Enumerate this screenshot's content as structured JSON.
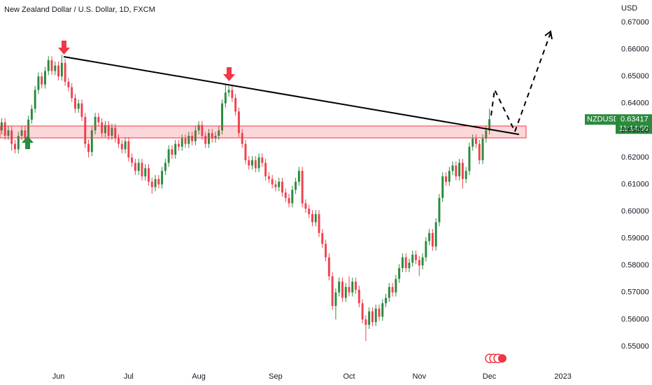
{
  "chart_data": {
    "type": "candlestick",
    "title": "New Zealand Dollar / U.S. Dollar, 1D, FXCM",
    "y_axis_label": "USD",
    "up_color": "#2b8a3e",
    "down_color": "#f0424f",
    "grid": false,
    "ylim": [
      0.5435,
      0.6783
    ],
    "yticks": [
      {
        "value": 0.55,
        "label": "0.55000"
      },
      {
        "value": 0.56,
        "label": "0.56000"
      },
      {
        "value": 0.57,
        "label": "0.57000"
      },
      {
        "value": 0.58,
        "label": "0.58000"
      },
      {
        "value": 0.59,
        "label": "0.59000"
      },
      {
        "value": 0.6,
        "label": "0.60000"
      },
      {
        "value": 0.61,
        "label": "0.61000"
      },
      {
        "value": 0.62,
        "label": "0.62000"
      },
      {
        "value": 0.63,
        "label": "0.63000"
      },
      {
        "value": 0.64,
        "label": "0.64000"
      },
      {
        "value": 0.65,
        "label": "0.65000"
      },
      {
        "value": 0.66,
        "label": "0.66000"
      },
      {
        "value": 0.67,
        "label": "0.67000"
      }
    ],
    "xlim": [
      -0.5,
      177.5
    ],
    "xticks": [
      {
        "value": 17,
        "label": "Jun"
      },
      {
        "value": 38,
        "label": "Jul"
      },
      {
        "value": 59,
        "label": "Aug"
      },
      {
        "value": 82,
        "label": "Sep"
      },
      {
        "value": 104,
        "label": "Oct"
      },
      {
        "value": 125,
        "label": "Nov"
      },
      {
        "value": 146,
        "label": "Dec"
      },
      {
        "value": 168,
        "label": "2023"
      }
    ],
    "open": [
      0.63,
      0.633,
      0.628,
      0.63,
      0.625,
      0.623,
      0.628,
      0.63,
      0.627,
      0.634,
      0.638,
      0.645,
      0.65,
      0.647,
      0.652,
      0.656,
      0.652,
      0.654,
      0.65,
      0.655,
      0.648,
      0.646,
      0.642,
      0.638,
      0.64,
      0.635,
      0.625,
      0.622,
      0.63,
      0.635,
      0.633,
      0.629,
      0.632,
      0.628,
      0.631,
      0.627,
      0.625,
      0.623,
      0.626,
      0.62,
      0.618,
      0.615,
      0.618,
      0.613,
      0.616,
      0.611,
      0.609,
      0.612,
      0.61,
      0.615,
      0.618,
      0.623,
      0.621,
      0.625,
      0.624,
      0.627,
      0.625,
      0.628,
      0.626,
      0.63,
      0.632,
      0.628,
      0.625,
      0.629,
      0.627,
      0.628,
      0.63,
      0.64,
      0.644,
      0.645,
      0.642,
      0.637,
      0.629,
      0.625,
      0.619,
      0.617,
      0.619,
      0.616,
      0.62,
      0.618,
      0.613,
      0.612,
      0.61,
      0.609,
      0.611,
      0.607,
      0.605,
      0.603,
      0.608,
      0.611,
      0.615,
      0.603,
      0.601,
      0.599,
      0.596,
      0.599,
      0.592,
      0.588,
      0.583,
      0.576,
      0.565,
      0.57,
      0.574,
      0.568,
      0.572,
      0.57,
      0.574,
      0.571,
      0.566,
      0.56,
      0.558,
      0.563,
      0.559,
      0.564,
      0.561,
      0.566,
      0.568,
      0.572,
      0.57,
      0.575,
      0.579,
      0.583,
      0.579,
      0.581,
      0.584,
      0.582,
      0.58,
      0.583,
      0.589,
      0.592,
      0.587,
      0.596,
      0.605,
      0.613,
      0.611,
      0.615,
      0.617,
      0.613,
      0.618,
      0.612,
      0.615,
      0.624,
      0.627,
      0.625,
      0.619,
      0.627,
      0.63
    ],
    "high": [
      0.6345,
      0.6345,
      0.6315,
      0.6315,
      0.6265,
      0.6295,
      0.6315,
      0.6315,
      0.6355,
      0.6395,
      0.6465,
      0.6515,
      0.6515,
      0.6535,
      0.6575,
      0.6575,
      0.6555,
      0.6555,
      0.658,
      0.6565,
      0.6495,
      0.6475,
      0.6435,
      0.6415,
      0.6415,
      0.6365,
      0.6265,
      0.6315,
      0.6365,
      0.6365,
      0.6345,
      0.6335,
      0.6335,
      0.6325,
      0.6325,
      0.6285,
      0.6265,
      0.6275,
      0.6275,
      0.6215,
      0.6195,
      0.6195,
      0.6195,
      0.6175,
      0.6175,
      0.6125,
      0.6135,
      0.6135,
      0.6165,
      0.6195,
      0.6245,
      0.6245,
      0.6265,
      0.6265,
      0.6285,
      0.6285,
      0.6295,
      0.6295,
      0.6315,
      0.6335,
      0.6335,
      0.6295,
      0.6305,
      0.6305,
      0.6295,
      0.6315,
      0.6415,
      0.647,
      0.6465,
      0.6465,
      0.6435,
      0.6385,
      0.6305,
      0.6265,
      0.6205,
      0.6205,
      0.6205,
      0.6215,
      0.6215,
      0.6195,
      0.6145,
      0.6135,
      0.6115,
      0.6125,
      0.6125,
      0.6085,
      0.6065,
      0.6095,
      0.6125,
      0.6165,
      0.6165,
      0.6045,
      0.6025,
      0.6005,
      0.6005,
      0.6005,
      0.5935,
      0.5895,
      0.5845,
      0.5775,
      0.5715,
      0.5755,
      0.5755,
      0.5735,
      0.576,
      0.5755,
      0.5755,
      0.5725,
      0.5675,
      0.5615,
      0.5645,
      0.5645,
      0.5655,
      0.5655,
      0.5675,
      0.5695,
      0.5735,
      0.5735,
      0.5765,
      0.5805,
      0.5845,
      0.5845,
      0.5825,
      0.5855,
      0.5855,
      0.5835,
      0.5845,
      0.5905,
      0.5935,
      0.5935,
      0.5975,
      0.6065,
      0.6145,
      0.6145,
      0.6165,
      0.6185,
      0.6185,
      0.6195,
      0.6195,
      0.6165,
      0.6255,
      0.6285,
      0.6285,
      0.6265,
      0.6285,
      0.6315,
      0.638
    ],
    "low": [
      0.6285,
      0.6265,
      0.6265,
      0.6225,
      0.6215,
      0.6215,
      0.6265,
      0.6255,
      0.6255,
      0.6325,
      0.6365,
      0.6435,
      0.6455,
      0.6455,
      0.6505,
      0.6505,
      0.6505,
      0.6485,
      0.6485,
      0.6465,
      0.6445,
      0.6405,
      0.6365,
      0.6365,
      0.6335,
      0.6235,
      0.62,
      0.6205,
      0.6285,
      0.6315,
      0.6275,
      0.6275,
      0.6265,
      0.6265,
      0.6255,
      0.6235,
      0.6215,
      0.6215,
      0.6185,
      0.6165,
      0.6135,
      0.6135,
      0.6115,
      0.6115,
      0.6095,
      0.6065,
      0.6075,
      0.6085,
      0.6085,
      0.6135,
      0.6165,
      0.6195,
      0.6195,
      0.6225,
      0.6225,
      0.6235,
      0.6235,
      0.6245,
      0.6245,
      0.6285,
      0.6265,
      0.6235,
      0.6235,
      0.6255,
      0.6255,
      0.6265,
      0.6285,
      0.6385,
      0.6425,
      0.6405,
      0.6355,
      0.6275,
      0.6235,
      0.6175,
      0.6155,
      0.6155,
      0.6145,
      0.6145,
      0.6165,
      0.6115,
      0.6105,
      0.6085,
      0.6075,
      0.6075,
      0.6055,
      0.6035,
      0.6015,
      0.6015,
      0.6065,
      0.6095,
      0.6015,
      0.5995,
      0.5975,
      0.5945,
      0.5945,
      0.5905,
      0.5865,
      0.5815,
      0.5745,
      0.5635,
      0.56,
      0.5685,
      0.5665,
      0.5665,
      0.5685,
      0.5685,
      0.5695,
      0.5645,
      0.5585,
      0.552,
      0.5565,
      0.5575,
      0.5575,
      0.5595,
      0.5595,
      0.5645,
      0.5665,
      0.5685,
      0.5685,
      0.5735,
      0.5775,
      0.5775,
      0.5775,
      0.5795,
      0.5805,
      0.576,
      0.5785,
      0.5815,
      0.5875,
      0.5855,
      0.5855,
      0.5945,
      0.6035,
      0.6095,
      0.6095,
      0.6135,
      0.6115,
      0.6115,
      0.6085,
      0.6105,
      0.6135,
      0.6225,
      0.6235,
      0.6175,
      0.6175,
      0.6255,
      0.6285
    ],
    "close": [
      0.633,
      0.628,
      0.63,
      0.625,
      0.623,
      0.628,
      0.63,
      0.627,
      0.634,
      0.638,
      0.645,
      0.65,
      0.647,
      0.652,
      0.656,
      0.652,
      0.654,
      0.65,
      0.655,
      0.648,
      0.646,
      0.642,
      0.638,
      0.64,
      0.635,
      0.625,
      0.622,
      0.63,
      0.635,
      0.633,
      0.629,
      0.632,
      0.628,
      0.631,
      0.627,
      0.625,
      0.623,
      0.626,
      0.62,
      0.618,
      0.615,
      0.618,
      0.613,
      0.616,
      0.611,
      0.609,
      0.612,
      0.61,
      0.615,
      0.618,
      0.623,
      0.621,
      0.625,
      0.624,
      0.627,
      0.625,
      0.628,
      0.626,
      0.63,
      0.632,
      0.628,
      0.625,
      0.629,
      0.627,
      0.628,
      0.63,
      0.64,
      0.644,
      0.645,
      0.642,
      0.637,
      0.629,
      0.625,
      0.619,
      0.617,
      0.619,
      0.616,
      0.62,
      0.618,
      0.613,
      0.612,
      0.61,
      0.609,
      0.611,
      0.607,
      0.605,
      0.603,
      0.608,
      0.611,
      0.615,
      0.603,
      0.601,
      0.599,
      0.596,
      0.599,
      0.592,
      0.588,
      0.583,
      0.576,
      0.565,
      0.57,
      0.574,
      0.568,
      0.572,
      0.57,
      0.574,
      0.571,
      0.566,
      0.56,
      0.558,
      0.563,
      0.559,
      0.564,
      0.561,
      0.566,
      0.568,
      0.572,
      0.57,
      0.575,
      0.579,
      0.583,
      0.579,
      0.581,
      0.584,
      0.582,
      0.58,
      0.583,
      0.589,
      0.592,
      0.587,
      0.596,
      0.605,
      0.613,
      0.611,
      0.615,
      0.617,
      0.613,
      0.618,
      0.612,
      0.615,
      0.624,
      0.627,
      0.625,
      0.619,
      0.627,
      0.63,
      0.63417
    ],
    "price_tag": {
      "symbol": "NZDUSD",
      "price": "0.63417",
      "countdown": "11:14:50"
    }
  }
}
